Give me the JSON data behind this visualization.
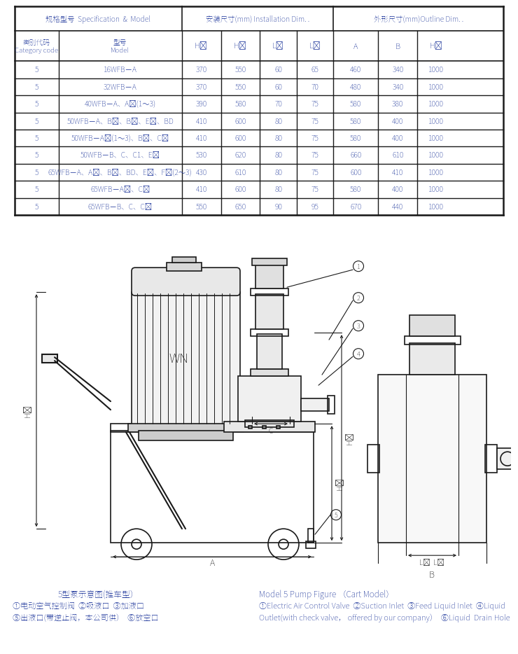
{
  "header_row1": [
    "规格型号  Specification  &  Model",
    "安装尺寸(mm) Installation Dim. .",
    "外形尺寸(mm)Outline Dim. ."
  ],
  "header_row2_cn": [
    "类别代码",
    "型号"
  ],
  "header_row2_en": [
    "Category code",
    "Model"
  ],
  "header_row2_dim": [
    "H₁",
    "H₂",
    "L₁",
    "L₂",
    "A",
    "B",
    "H₃"
  ],
  "rows": [
    [
      "5",
      "16WFB－A",
      "370",
      "550",
      "60",
      "65",
      "460",
      "340",
      "1000"
    ],
    [
      "5",
      "32WFB－A",
      "370",
      "550",
      "60",
      "70",
      "480",
      "340",
      "1000"
    ],
    [
      "5",
      "40WFB－A、A₁(1～3)",
      "390",
      "580",
      "70",
      "75",
      "580",
      "380",
      "1000"
    ],
    [
      "5",
      "50WFB－A、B₁、B₂、E₃、BD",
      "410",
      "600",
      "80",
      "75",
      "580",
      "400",
      "1000"
    ],
    [
      "5",
      "50WFB－A₁(1～3)、B₃、C₂",
      "410",
      "600",
      "80",
      "75",
      "580",
      "400",
      "1000"
    ],
    [
      "5",
      "50WFB－B、C、C1、E₁",
      "530",
      "620",
      "80",
      "75",
      "660",
      "610",
      "1000"
    ],
    [
      "5",
      "65WFB－A、A₁、B₁、BD、E₂、F₂(2～3)",
      "430",
      "610",
      "80",
      "75",
      "600",
      "410",
      "1000"
    ],
    [
      "5",
      "65WFB－A₂、C₂",
      "410",
      "600",
      "80",
      "75",
      "580",
      "400",
      "1000"
    ],
    [
      "5",
      "65WFB－B、C、C₁",
      "550",
      "650",
      "90",
      "95",
      "670",
      "440",
      "1000"
    ]
  ],
  "bg_color": "#ffffff",
  "line_color": "#1a1a1a",
  "text_color": "#1a3399",
  "caption_cn_line1": "5型泵示意图(推车型）",
  "caption_cn_line2": "①电动空气控制阀  ②吸液口  ③加液口",
  "caption_cn_line3": "⑤出液口(带逆止阀，本公司供）  ⑥放空口",
  "caption_en_line1": "Model 5 Pump Figure （Cart Model）",
  "caption_en_line2": "①Electric Air Control Valve  ②Suction Inlet  ③Feed Liquid Inlet  ④Liquid",
  "caption_en_line3": "Outlet(with check valve， offered by our company）  ⑥Liquid  Drain Hole"
}
